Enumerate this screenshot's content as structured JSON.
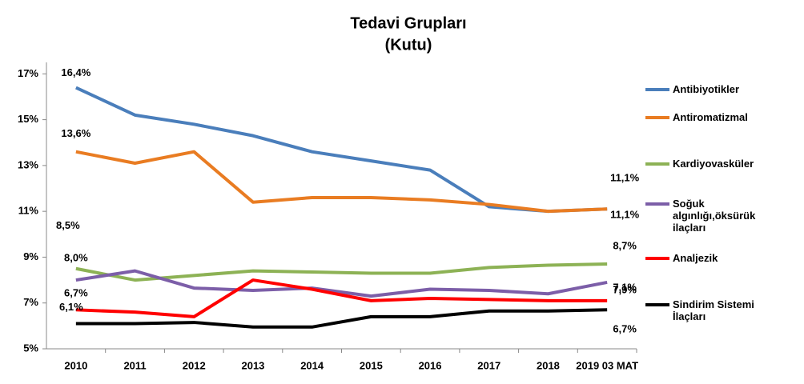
{
  "chart_data": {
    "type": "line",
    "title": "Tedavi Grupları",
    "subtitle": "(Kutu)",
    "categories": [
      "2010",
      "2011",
      "2012",
      "2013",
      "2014",
      "2015",
      "2016",
      "2017",
      "2018",
      "2019 03 MAT"
    ],
    "ylim": [
      5,
      17.5
    ],
    "yticks": [
      {
        "value": 5,
        "label": "5%"
      },
      {
        "value": 7,
        "label": "7%"
      },
      {
        "value": 9,
        "label": "9%"
      },
      {
        "value": 11,
        "label": "11%"
      },
      {
        "value": 13,
        "label": "13%"
      },
      {
        "value": 15,
        "label": "15%"
      },
      {
        "value": 17,
        "label": "17%"
      }
    ],
    "series": [
      {
        "name": "Antibiyotikler",
        "color": "#4a7ebb",
        "values": [
          16.4,
          15.2,
          14.8,
          14.3,
          13.6,
          13.2,
          12.8,
          11.2,
          11.0,
          11.1
        ],
        "value_labels": [
          "16,4%",
          null,
          null,
          null,
          null,
          null,
          null,
          null,
          null,
          "11,1%"
        ]
      },
      {
        "name": "Antiromatizmal",
        "color": "#e97c22",
        "values": [
          13.6,
          13.1,
          13.6,
          11.4,
          11.6,
          11.6,
          11.5,
          11.3,
          11.0,
          11.1
        ],
        "value_labels": [
          "13,6%",
          null,
          null,
          null,
          null,
          null,
          null,
          null,
          null,
          "11,1%"
        ]
      },
      {
        "name": "Kardiyovasküler",
        "color": "#8db255",
        "values": [
          8.5,
          8.0,
          8.2,
          8.4,
          8.35,
          8.3,
          8.3,
          8.55,
          8.65,
          8.7
        ],
        "value_labels": [
          "8,5%",
          null,
          null,
          null,
          null,
          null,
          null,
          null,
          null,
          "8,7%"
        ]
      },
      {
        "name": "Soğuk algınlığı,öksürük ilaçları",
        "color": "#7c5ea8",
        "values": [
          8.0,
          8.4,
          7.65,
          7.55,
          7.65,
          7.3,
          7.6,
          7.55,
          7.4,
          7.9
        ],
        "value_labels": [
          "8,0%",
          null,
          null,
          null,
          null,
          null,
          null,
          null,
          null,
          "7,9%"
        ]
      },
      {
        "name": "Analjezik",
        "color": "#ff0000",
        "values": [
          6.7,
          6.6,
          6.4,
          8.0,
          7.6,
          7.1,
          7.2,
          7.15,
          7.1,
          7.1
        ],
        "value_labels": [
          "6,7%",
          null,
          null,
          null,
          null,
          null,
          null,
          null,
          null,
          "7,1%"
        ]
      },
      {
        "name": "Sindirim Sistemi İlaçları",
        "color": "#000000",
        "values": [
          6.1,
          6.1,
          6.15,
          5.95,
          5.95,
          6.4,
          6.4,
          6.65,
          6.65,
          6.7
        ],
        "value_labels": [
          "6,1%",
          null,
          null,
          null,
          null,
          null,
          null,
          null,
          null,
          "6,7%"
        ]
      }
    ]
  }
}
